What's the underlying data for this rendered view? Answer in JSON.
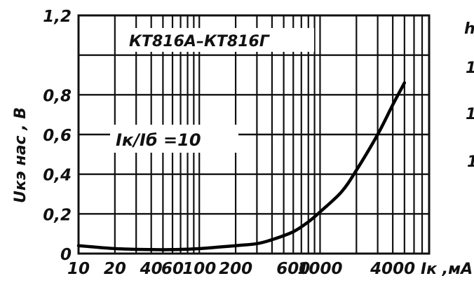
{
  "chart_data": {
    "type": "line",
    "title": "КТ816А–КТ816Г",
    "annotation": "Iк/Iб =10",
    "ylabel": "Uкэ нас , В",
    "xlabel": "Iк ,мА",
    "x_scale": "log",
    "xlim": [
      10,
      8000
    ],
    "ylim": [
      0,
      1.2
    ],
    "grid": true,
    "x_ticks": [
      10,
      20,
      40,
      60,
      100,
      200,
      600,
      1000,
      4000
    ],
    "x_tick_labels": [
      "10",
      "20",
      "40",
      "60",
      "100",
      "200",
      "600",
      "1000",
      "4000"
    ],
    "x_gridlines": [
      10,
      20,
      30,
      40,
      50,
      60,
      70,
      80,
      90,
      100,
      200,
      300,
      400,
      500,
      600,
      700,
      800,
      900,
      1000,
      2000,
      3000,
      4000,
      5000,
      6000,
      7000,
      8000
    ],
    "y_ticks": [
      0,
      0.2,
      0.4,
      0.6,
      0.8,
      1.0,
      1.2
    ],
    "y_tick_labels": [
      "0",
      "0,2",
      "0,4",
      "0,6",
      "0,8",
      "",
      "1,2"
    ],
    "series": [
      {
        "x": [
          10,
          20,
          40,
          60,
          100,
          200,
          300,
          400,
          600,
          800,
          1000,
          1500,
          2000,
          3000,
          4000,
          5000
        ],
        "y": [
          0.04,
          0.025,
          0.02,
          0.02,
          0.025,
          0.04,
          0.05,
          0.07,
          0.11,
          0.16,
          0.21,
          0.31,
          0.42,
          0.6,
          0.75,
          0.86
        ]
      }
    ]
  },
  "right_fragments": [
    "h",
    "1",
    "1",
    "1"
  ]
}
